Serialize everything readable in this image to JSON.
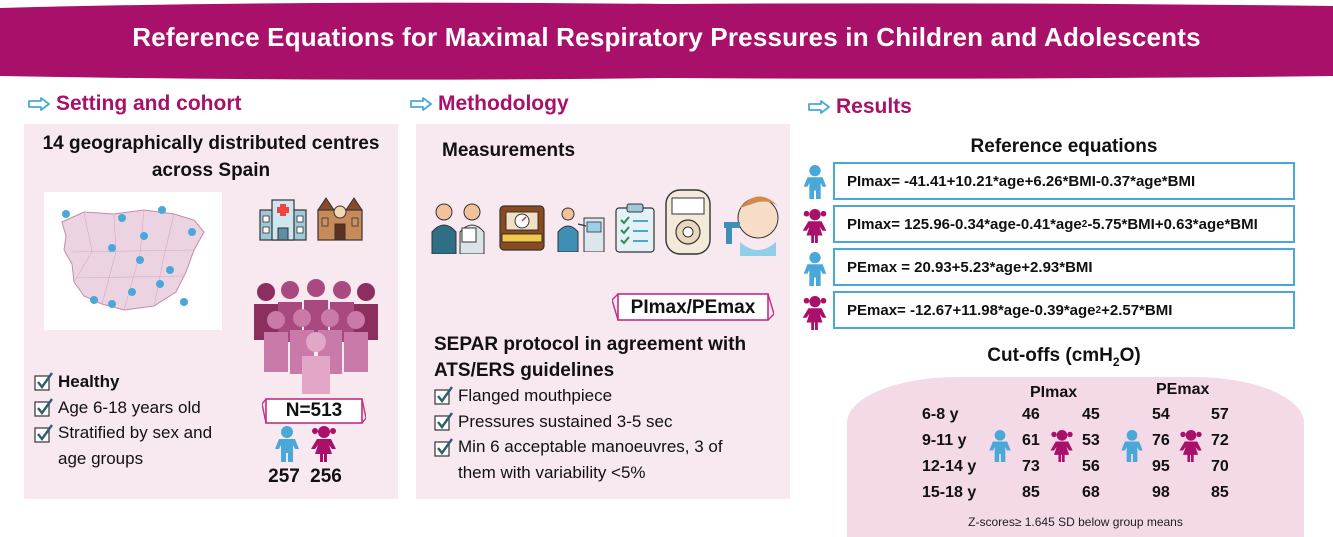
{
  "title": "Reference Equations for Maximal Respiratory Pressures in Children and Adolescents",
  "colors": {
    "brand": "#a8106a",
    "panel": "#f8e8f0",
    "boy": "#4aa8d8",
    "girl": "#a8106a"
  },
  "setting": {
    "heading": "Setting and cohort",
    "centres_line1": "14 geographically distributed centres",
    "centres_line2": "across Spain",
    "criteria": [
      "Healthy",
      "Age 6-18 years old",
      "Stratified by sex and",
      "age groups"
    ],
    "n_label": "N=513",
    "boys": "257",
    "girls": "256",
    "icons": [
      "map-of-spain-icon",
      "hospital-icon",
      "building-icon",
      "people-group-icon",
      "boy-icon",
      "girl-icon"
    ]
  },
  "methodology": {
    "heading": "Methodology",
    "measurements": "Measurements",
    "tag": "PImax/PEmax",
    "protocol_line1": "SEPAR protocol in agreement with",
    "protocol_line2": "ATS/ERS guidelines",
    "items": [
      "Flanged mouthpiece",
      "Pressures sustained 3-5 sec",
      "Min 6 acceptable manoeuvres, 3 of",
      "them with variability <5%"
    ],
    "icons": [
      "doctor-patient-icon",
      "scale-icon",
      "spirometer-icon",
      "clipboard-icon",
      "manometer-icon",
      "child-mouthpiece-icon"
    ]
  },
  "results": {
    "heading": "Results",
    "ref_title": "Reference equations",
    "equations": [
      {
        "sex": "boy",
        "prefix": "PImax= -41.41+10.21*age+6.26*BMI-0.37*age*BMI",
        "sup1": "",
        "mid": "",
        "sup2": "",
        "suffix": ""
      },
      {
        "sex": "girl",
        "prefix": "PImax= 125.96-0.34*age-0.41*age",
        "sup1": "2",
        "mid": "-5.75*BMI+0.63*age*BMI",
        "sup2": "",
        "suffix": ""
      },
      {
        "sex": "boy",
        "prefix": "PEmax = 20.93+5.23*age+2.93*BMI",
        "sup1": "",
        "mid": "",
        "sup2": "",
        "suffix": ""
      },
      {
        "sex": "girl",
        "prefix": "PEmax= -12.67+11.98*age-0.39*age",
        "sup1": "2",
        "mid": "+2.57*BMI",
        "sup2": "",
        "suffix": ""
      }
    ],
    "cutoffs_title": "Cut-offs (cmH",
    "cutoffs_sub": "2",
    "cutoffs_close": "O)",
    "col_pimax": "PImax",
    "col_pemax": "PEmax",
    "age_groups": [
      "6-8 y",
      "9-11 y",
      "12-14 y",
      "15-18 y"
    ],
    "pimax_boys": [
      "46",
      "61",
      "73",
      "85"
    ],
    "pimax_girls": [
      "45",
      "53",
      "56",
      "68"
    ],
    "pemax_boys": [
      "54",
      "76",
      "95",
      "98"
    ],
    "pemax_girls": [
      "57",
      "72",
      "70",
      "85"
    ],
    "footnote": "Z-scores≥ 1.645 SD below group means"
  }
}
